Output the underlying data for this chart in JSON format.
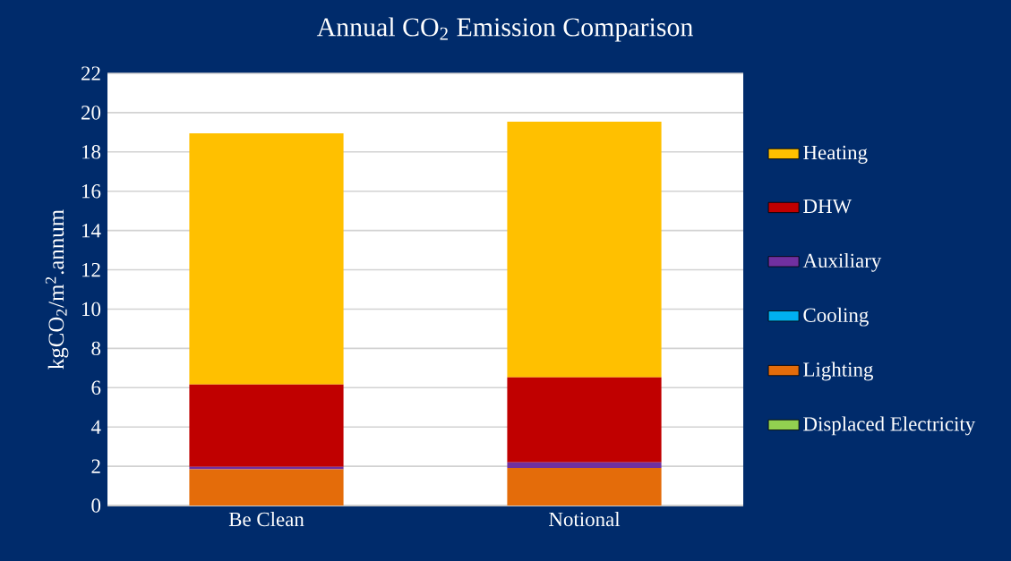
{
  "chart_data": {
    "type": "bar",
    "title": "Annual CO$_{2}$ Emission Comparison",
    "ylabel": "kgCO$_{2}$/m$^{2}$.annum",
    "categories": [
      "Be Clean",
      "Notional"
    ],
    "stacked": true,
    "grid": "y",
    "legend": "right",
    "ylim": [
      0,
      22
    ],
    "yticks": [
      0,
      2,
      4,
      6,
      8,
      10,
      12,
      14,
      16,
      18,
      20,
      22
    ],
    "series": [
      {
        "name": "Displaced Electricity",
        "color": "#92d050",
        "values": [
          0,
          0
        ]
      },
      {
        "name": "Lighting",
        "color": "#e46c0a",
        "values": [
          1.84,
          1.91
        ]
      },
      {
        "name": "Cooling",
        "color": "#00b0f0",
        "values": [
          0,
          0
        ]
      },
      {
        "name": "Auxiliary",
        "color": "#7030a0",
        "values": [
          0.13,
          0.29
        ]
      },
      {
        "name": "DHW",
        "color": "#c00000",
        "values": [
          4.19,
          4.33
        ]
      },
      {
        "name": "Heating",
        "color": "#ffc000",
        "values": [
          12.79,
          13.01
        ]
      }
    ]
  }
}
